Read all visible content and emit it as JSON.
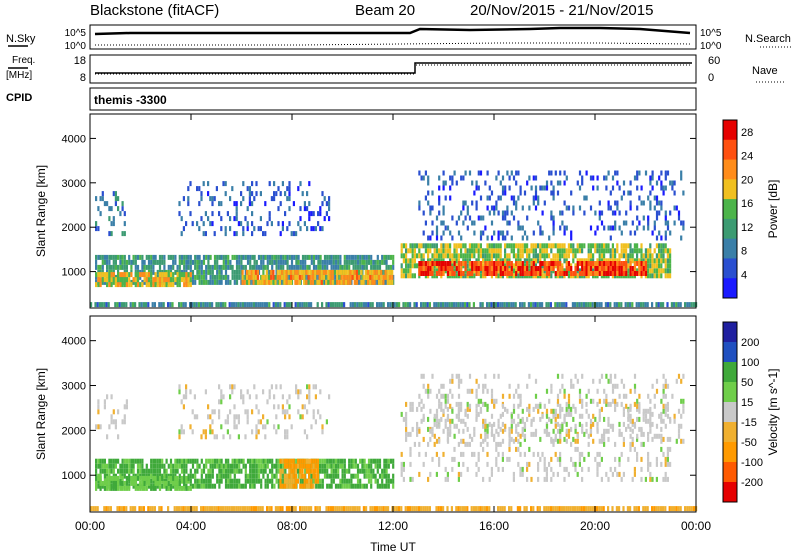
{
  "header": {
    "station": "Blackstone (fitACF)",
    "beam": "Beam 20",
    "dates": "20/Nov/2015 - 21/Nov/2015"
  },
  "top_panels": {
    "sky_label": "N.Sky",
    "sky_ticks": [
      "10^5",
      "10^0"
    ],
    "search_label": "N.Search",
    "freq_label": "Freq.",
    "freq_unit": "[MHz]",
    "freq_ticks": [
      "18",
      "8"
    ],
    "nave_label": "Nave",
    "nave_ticks": [
      "60",
      "0"
    ],
    "cpid_label": "CPID",
    "cpid_value": "themis -3300"
  },
  "colors": {
    "power": [
      "#1a1aff",
      "#2a4fd0",
      "#3a7fa8",
      "#3c9b72",
      "#4cb44a",
      "#f0c020",
      "#ff8c1a",
      "#ff5010",
      "#e60000"
    ],
    "velocity": [
      "#e60000",
      "#ff5a00",
      "#ff9a00",
      "#f0b030",
      "#c9c9c9",
      "#6fce4a",
      "#3fa93a",
      "#2050c0",
      "#2020a0"
    ],
    "ground_grey": "#c0c0c0"
  },
  "chart_data": [
    {
      "type": "heatmap",
      "name": "power",
      "xlabel": "",
      "ylabel": "Slant Range [km]",
      "x_ticks": [
        "00:00",
        "04:00",
        "08:00",
        "12:00",
        "16:00",
        "20:00",
        "00:00"
      ],
      "x_range_hours": [
        0,
        24
      ],
      "y_ticks": [
        1000,
        2000,
        3000,
        4000
      ],
      "ylim": [
        180,
        4550
      ],
      "colorbar": {
        "label": "Power [dB]",
        "ticks": [
          4,
          8,
          12,
          16,
          20,
          24,
          28
        ],
        "range": [
          0,
          30
        ]
      },
      "bands": [
        {
          "t0": 0.2,
          "t1": 12.0,
          "r0": 700,
          "r1": 1300,
          "level": 11
        },
        {
          "t0": 0.2,
          "t1": 4.0,
          "r0": 650,
          "r1": 900,
          "level": 18
        },
        {
          "t0": 6.0,
          "t1": 12.0,
          "r0": 700,
          "r1": 1000,
          "level": 20
        },
        {
          "t0": 12.3,
          "t1": 23.0,
          "r0": 850,
          "r1": 1600,
          "level": 16
        },
        {
          "t0": 13.0,
          "t1": 22.0,
          "r0": 900,
          "r1": 1200,
          "level": 26
        },
        {
          "t0": 0.2,
          "t1": 1.5,
          "r0": 1800,
          "r1": 2800,
          "level": 8
        },
        {
          "t0": 3.5,
          "t1": 9.5,
          "r0": 1800,
          "r1": 3000,
          "level": 6
        },
        {
          "t0": 13.0,
          "t1": 23.5,
          "r0": 1700,
          "r1": 3200,
          "level": 6
        },
        {
          "t0": 0.0,
          "t1": 24.0,
          "r0": 200,
          "r1": 300,
          "level": 10
        }
      ]
    },
    {
      "type": "heatmap",
      "name": "velocity",
      "xlabel": "Time UT",
      "ylabel": "Slant Range [km]",
      "x_ticks": [
        "00:00",
        "04:00",
        "08:00",
        "12:00",
        "16:00",
        "20:00",
        "00:00"
      ],
      "x_range_hours": [
        0,
        24
      ],
      "y_ticks": [
        1000,
        2000,
        3000,
        4000
      ],
      "ylim": [
        180,
        4550
      ],
      "colorbar": {
        "label": "Velocity [m s^-1]",
        "ticks": [
          200,
          100,
          50,
          15,
          -15,
          -50,
          -100,
          -200
        ],
        "range": [
          -250,
          250
        ]
      },
      "bands": [
        {
          "t0": 0.2,
          "t1": 12.0,
          "r0": 700,
          "r1": 1300,
          "level": 60
        },
        {
          "t0": 0.2,
          "t1": 4.0,
          "r0": 650,
          "r1": 900,
          "level": 40
        },
        {
          "t0": 7.5,
          "t1": 9.0,
          "r0": 700,
          "r1": 1300,
          "level": -60
        },
        {
          "t0": 12.3,
          "t1": 23.0,
          "r0": 850,
          "r1": 2600,
          "level": 0
        },
        {
          "t0": 0.2,
          "t1": 1.5,
          "r0": 1800,
          "r1": 2800,
          "level": 0
        },
        {
          "t0": 3.5,
          "t1": 9.5,
          "r0": 1800,
          "r1": 3000,
          "level": 0
        },
        {
          "t0": 13.0,
          "t1": 23.5,
          "r0": 1700,
          "r1": 3200,
          "level": 0
        },
        {
          "t0": 0.0,
          "t1": 24.0,
          "r0": 200,
          "r1": 300,
          "level": -40
        }
      ]
    }
  ]
}
